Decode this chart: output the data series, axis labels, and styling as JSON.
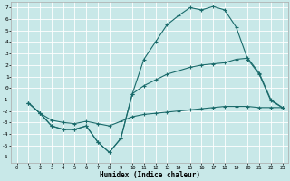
{
  "xlabel": "Humidex (Indice chaleur)",
  "xlim": [
    -0.5,
    23.5
  ],
  "ylim": [
    -6.5,
    7.5
  ],
  "xticks": [
    0,
    1,
    2,
    3,
    4,
    5,
    6,
    7,
    8,
    9,
    10,
    11,
    12,
    13,
    14,
    15,
    16,
    17,
    18,
    19,
    20,
    21,
    22,
    23
  ],
  "yticks": [
    -6,
    -5,
    -4,
    -3,
    -2,
    -1,
    0,
    1,
    2,
    3,
    4,
    5,
    6,
    7
  ],
  "bg_color": "#c8e8e8",
  "grid_color": "#ffffff",
  "line_color": "#1a6b6b",
  "line1_x": [
    1,
    2,
    3,
    4,
    5,
    6,
    7,
    8,
    9,
    10,
    11,
    12,
    13,
    14,
    15,
    16,
    17,
    18,
    19,
    20,
    21,
    22,
    23
  ],
  "line1_y": [
    -1.3,
    -2.2,
    -3.3,
    -3.6,
    -3.6,
    -3.3,
    -4.7,
    -5.6,
    -4.4,
    -0.5,
    2.5,
    4.0,
    5.5,
    6.3,
    7.0,
    6.8,
    7.1,
    6.8,
    5.3,
    2.5,
    1.2,
    -1.1,
    -1.7
  ],
  "line2_x": [
    1,
    2,
    3,
    4,
    5,
    6,
    7,
    8,
    9,
    10,
    11,
    12,
    13,
    14,
    15,
    16,
    17,
    18,
    19,
    20,
    21,
    22,
    23
  ],
  "line2_y": [
    -1.3,
    -2.2,
    -3.3,
    -3.6,
    -3.6,
    -3.3,
    -4.7,
    -5.6,
    -4.4,
    -0.5,
    0.2,
    0.7,
    1.2,
    1.5,
    1.8,
    2.0,
    2.1,
    2.2,
    2.5,
    2.6,
    1.3,
    -1.0,
    -1.7
  ],
  "line3_x": [
    1,
    2,
    3,
    4,
    5,
    6,
    7,
    8,
    9,
    10,
    11,
    12,
    13,
    14,
    15,
    16,
    17,
    18,
    19,
    20,
    21,
    22,
    23
  ],
  "line3_y": [
    -1.3,
    -2.2,
    -2.8,
    -3.0,
    -3.1,
    -2.9,
    -3.1,
    -3.3,
    -2.9,
    -2.5,
    -2.3,
    -2.2,
    -2.1,
    -2.0,
    -1.9,
    -1.8,
    -1.7,
    -1.6,
    -1.6,
    -1.6,
    -1.7,
    -1.7,
    -1.7
  ]
}
